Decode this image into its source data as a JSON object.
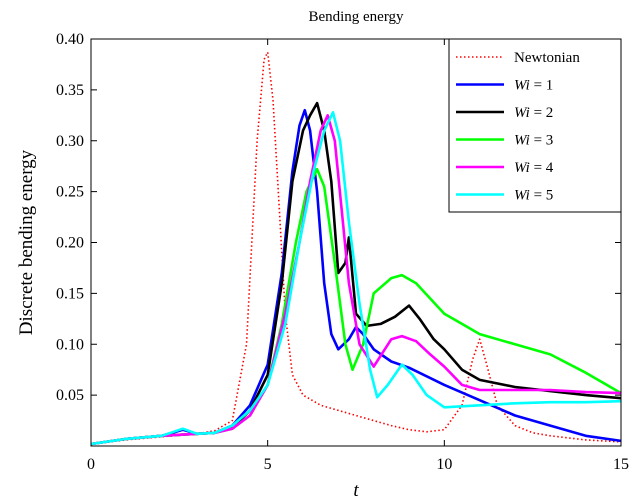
{
  "chart_data": {
    "type": "line",
    "title": "Bending energy",
    "xlabel": "t",
    "ylabel": "Discrete bending energy",
    "xlim": [
      0,
      15
    ],
    "ylim": [
      0,
      0.4
    ],
    "x_ticks": [
      "0",
      "5",
      "10",
      "15"
    ],
    "y_ticks": [
      "0.05",
      "0.10",
      "0.15",
      "0.20",
      "0.25",
      "0.30",
      "0.35",
      "0.40"
    ],
    "grid": false,
    "legend_position": "top-right",
    "series": [
      {
        "name": "Newtonian",
        "color": "#ff0000",
        "style": "dotted",
        "points": [
          [
            0,
            0.002
          ],
          [
            1,
            0.006
          ],
          [
            2,
            0.009
          ],
          [
            3,
            0.012
          ],
          [
            3.5,
            0.015
          ],
          [
            4,
            0.025
          ],
          [
            4.4,
            0.1
          ],
          [
            4.7,
            0.3
          ],
          [
            4.9,
            0.38
          ],
          [
            5.0,
            0.387
          ],
          [
            5.15,
            0.34
          ],
          [
            5.3,
            0.25
          ],
          [
            5.5,
            0.13
          ],
          [
            5.7,
            0.07
          ],
          [
            6,
            0.05
          ],
          [
            6.5,
            0.04
          ],
          [
            7,
            0.035
          ],
          [
            7.5,
            0.03
          ],
          [
            8,
            0.025
          ],
          [
            8.5,
            0.02
          ],
          [
            9,
            0.016
          ],
          [
            9.5,
            0.014
          ],
          [
            10,
            0.016
          ],
          [
            10.5,
            0.04
          ],
          [
            10.8,
            0.085
          ],
          [
            11.0,
            0.105
          ],
          [
            11.2,
            0.08
          ],
          [
            11.5,
            0.04
          ],
          [
            12,
            0.02
          ],
          [
            12.5,
            0.013
          ],
          [
            13,
            0.01
          ],
          [
            14,
            0.006
          ],
          [
            15,
            0.004
          ]
        ]
      },
      {
        "name": "Wi = 1",
        "color": "#0000ff",
        "style": "solid",
        "points": [
          [
            0,
            0.002
          ],
          [
            1,
            0.007
          ],
          [
            2,
            0.01
          ],
          [
            2.6,
            0.016
          ],
          [
            3,
            0.012
          ],
          [
            3.5,
            0.013
          ],
          [
            4,
            0.02
          ],
          [
            4.5,
            0.04
          ],
          [
            5,
            0.08
          ],
          [
            5.4,
            0.17
          ],
          [
            5.7,
            0.27
          ],
          [
            5.9,
            0.315
          ],
          [
            6.05,
            0.33
          ],
          [
            6.2,
            0.31
          ],
          [
            6.4,
            0.25
          ],
          [
            6.6,
            0.16
          ],
          [
            6.8,
            0.11
          ],
          [
            7,
            0.095
          ],
          [
            7.3,
            0.105
          ],
          [
            7.5,
            0.117
          ],
          [
            7.7,
            0.11
          ],
          [
            8,
            0.095
          ],
          [
            8.5,
            0.083
          ],
          [
            9,
            0.077
          ],
          [
            10,
            0.06
          ],
          [
            11,
            0.045
          ],
          [
            12,
            0.03
          ],
          [
            13,
            0.02
          ],
          [
            14,
            0.01
          ],
          [
            15,
            0.005
          ]
        ]
      },
      {
        "name": "Wi = 2",
        "color": "#000000",
        "style": "solid",
        "points": [
          [
            0,
            0.002
          ],
          [
            1,
            0.007
          ],
          [
            2,
            0.01
          ],
          [
            3,
            0.012
          ],
          [
            3.5,
            0.013
          ],
          [
            4,
            0.018
          ],
          [
            4.5,
            0.035
          ],
          [
            5,
            0.07
          ],
          [
            5.4,
            0.16
          ],
          [
            5.7,
            0.26
          ],
          [
            6,
            0.31
          ],
          [
            6.2,
            0.325
          ],
          [
            6.4,
            0.337
          ],
          [
            6.6,
            0.31
          ],
          [
            6.8,
            0.26
          ],
          [
            7,
            0.17
          ],
          [
            7.2,
            0.18
          ],
          [
            7.3,
            0.205
          ],
          [
            7.5,
            0.13
          ],
          [
            7.8,
            0.118
          ],
          [
            8.2,
            0.12
          ],
          [
            8.6,
            0.127
          ],
          [
            9,
            0.138
          ],
          [
            9.3,
            0.125
          ],
          [
            9.7,
            0.105
          ],
          [
            10,
            0.095
          ],
          [
            10.5,
            0.075
          ],
          [
            11,
            0.065
          ],
          [
            12,
            0.058
          ],
          [
            13,
            0.054
          ],
          [
            14,
            0.05
          ],
          [
            15,
            0.047
          ]
        ]
      },
      {
        "name": "Wi = 3",
        "color": "#00ff00",
        "style": "solid",
        "points": [
          [
            0,
            0.002
          ],
          [
            1,
            0.007
          ],
          [
            2,
            0.01
          ],
          [
            3,
            0.012
          ],
          [
            3.5,
            0.013
          ],
          [
            4,
            0.017
          ],
          [
            4.5,
            0.03
          ],
          [
            5,
            0.06
          ],
          [
            5.4,
            0.12
          ],
          [
            5.8,
            0.2
          ],
          [
            6.1,
            0.25
          ],
          [
            6.4,
            0.272
          ],
          [
            6.6,
            0.255
          ],
          [
            6.9,
            0.18
          ],
          [
            7.2,
            0.1
          ],
          [
            7.4,
            0.075
          ],
          [
            7.7,
            0.1
          ],
          [
            8,
            0.15
          ],
          [
            8.5,
            0.165
          ],
          [
            8.8,
            0.168
          ],
          [
            9.2,
            0.16
          ],
          [
            9.6,
            0.145
          ],
          [
            10,
            0.13
          ],
          [
            10.5,
            0.12
          ],
          [
            11,
            0.11
          ],
          [
            12,
            0.1
          ],
          [
            13,
            0.09
          ],
          [
            14,
            0.072
          ],
          [
            15,
            0.052
          ]
        ]
      },
      {
        "name": "Wi = 4",
        "color": "#ff00ff",
        "style": "solid",
        "points": [
          [
            0,
            0.002
          ],
          [
            1,
            0.007
          ],
          [
            2,
            0.01
          ],
          [
            3,
            0.012
          ],
          [
            3.5,
            0.013
          ],
          [
            4,
            0.017
          ],
          [
            4.5,
            0.03
          ],
          [
            5,
            0.06
          ],
          [
            5.5,
            0.13
          ],
          [
            5.9,
            0.2
          ],
          [
            6.2,
            0.26
          ],
          [
            6.5,
            0.31
          ],
          [
            6.7,
            0.325
          ],
          [
            6.9,
            0.3
          ],
          [
            7.1,
            0.23
          ],
          [
            7.3,
            0.16
          ],
          [
            7.6,
            0.1
          ],
          [
            8,
            0.078
          ],
          [
            8.5,
            0.105
          ],
          [
            8.8,
            0.108
          ],
          [
            9.2,
            0.103
          ],
          [
            9.6,
            0.09
          ],
          [
            10,
            0.078
          ],
          [
            10.5,
            0.06
          ],
          [
            11,
            0.055
          ],
          [
            12,
            0.055
          ],
          [
            13,
            0.055
          ],
          [
            14,
            0.053
          ],
          [
            15,
            0.052
          ]
        ]
      },
      {
        "name": "Wi = 5",
        "color": "#00ffff",
        "style": "solid",
        "points": [
          [
            0,
            0.002
          ],
          [
            1,
            0.007
          ],
          [
            2,
            0.01
          ],
          [
            2.6,
            0.017
          ],
          [
            3,
            0.012
          ],
          [
            3.5,
            0.013
          ],
          [
            4,
            0.02
          ],
          [
            4.5,
            0.035
          ],
          [
            5,
            0.06
          ],
          [
            5.5,
            0.12
          ],
          [
            5.9,
            0.2
          ],
          [
            6.3,
            0.27
          ],
          [
            6.6,
            0.31
          ],
          [
            6.85,
            0.328
          ],
          [
            7.05,
            0.3
          ],
          [
            7.3,
            0.22
          ],
          [
            7.6,
            0.14
          ],
          [
            7.9,
            0.075
          ],
          [
            8.1,
            0.048
          ],
          [
            8.4,
            0.06
          ],
          [
            8.8,
            0.08
          ],
          [
            9.1,
            0.07
          ],
          [
            9.5,
            0.05
          ],
          [
            10,
            0.038
          ],
          [
            11,
            0.04
          ],
          [
            12,
            0.042
          ],
          [
            13,
            0.043
          ],
          [
            14,
            0.043
          ],
          [
            15,
            0.044
          ]
        ]
      }
    ]
  }
}
